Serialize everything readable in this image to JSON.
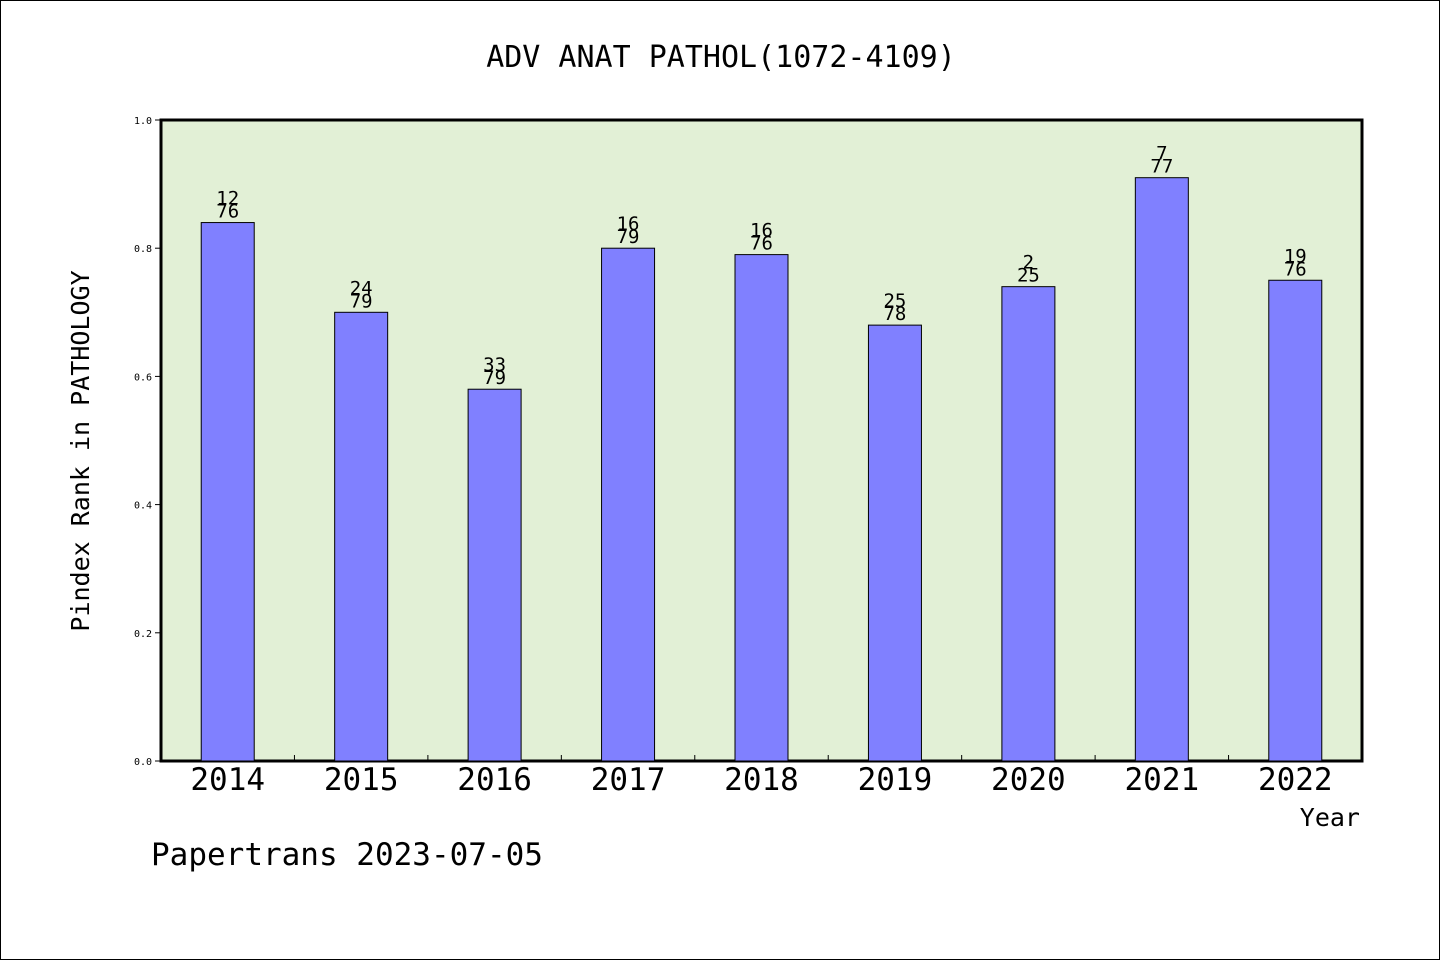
{
  "chart_data": {
    "type": "bar",
    "title": "ADV ANAT PATHOL(1072-4109)",
    "xlabel": "Year",
    "ylabel": "Pindex Rank in PATHOLOGY",
    "categories": [
      "2014",
      "2015",
      "2016",
      "2017",
      "2018",
      "2019",
      "2020",
      "2021",
      "2022"
    ],
    "values": [
      0.84,
      0.7,
      0.58,
      0.8,
      0.79,
      0.68,
      0.74,
      0.91,
      0.75
    ],
    "rank_labels": [
      "12",
      "24",
      "33",
      "16",
      "16",
      "25",
      "2",
      "7",
      "19"
    ],
    "total_labels": [
      "76",
      "79",
      "79",
      "79",
      "76",
      "78",
      "25",
      "77",
      "76"
    ],
    "ylim": [
      0,
      1.0
    ],
    "yticks": [
      "0.0",
      "0.2",
      "0.4",
      "0.6",
      "0.8",
      "1.0"
    ],
    "grid": false,
    "colors": {
      "plot_background": "#e2f0d6",
      "bar_fill": "#8080ff",
      "bar_stroke": "#000000"
    }
  },
  "footer": "Papertrans 2023-07-05"
}
